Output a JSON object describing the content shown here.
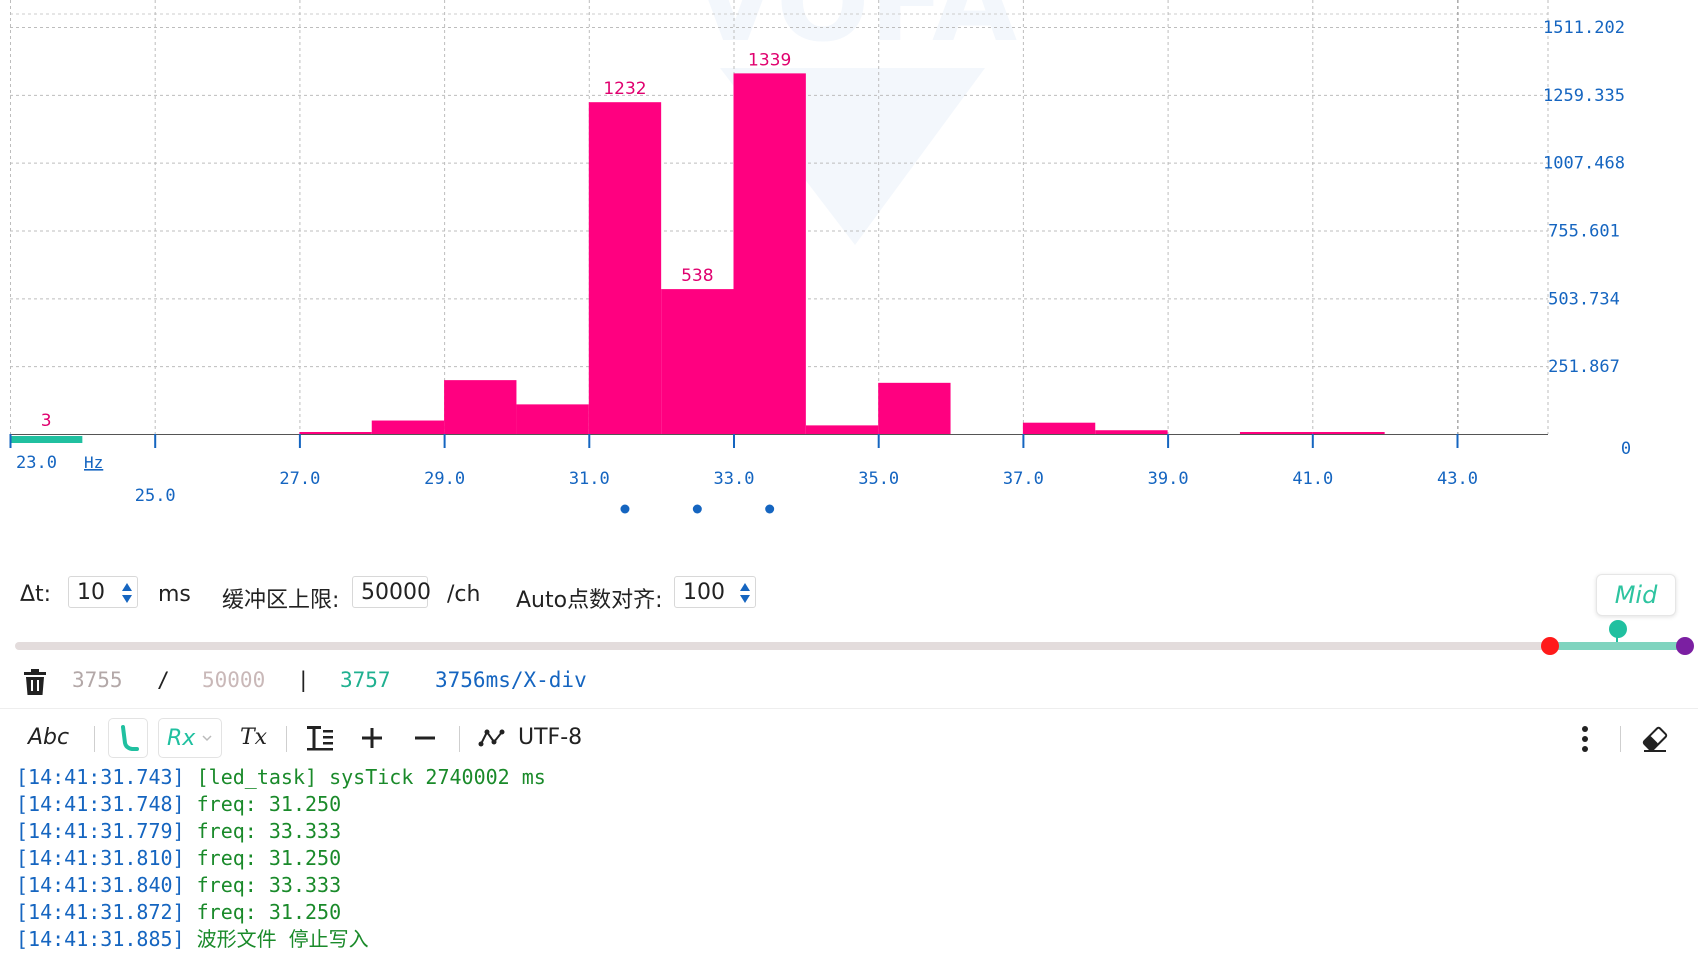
{
  "chart_data": {
    "type": "bar",
    "xlabel": "Hz",
    "xlim": [
      23.0,
      44.2
    ],
    "ylim": [
      0,
      1511.202
    ],
    "bin_width": 1.0,
    "bins": [
      {
        "x": 23.0,
        "value": 3,
        "label": "3",
        "color": "#20c0a0"
      },
      {
        "x": 27.0,
        "value": 4,
        "label": "",
        "color": "#ff0080"
      },
      {
        "x": 28.0,
        "value": 50,
        "label": "",
        "color": "#ff0080"
      },
      {
        "x": 29.0,
        "value": 200,
        "label": "",
        "color": "#ff0080"
      },
      {
        "x": 30.0,
        "value": 110,
        "label": "",
        "color": "#ff0080"
      },
      {
        "x": 31.0,
        "value": 1232,
        "label": "1232",
        "color": "#ff0080"
      },
      {
        "x": 32.0,
        "value": 538,
        "label": "538",
        "color": "#ff0080"
      },
      {
        "x": 33.0,
        "value": 1339,
        "label": "1339",
        "color": "#ff0080"
      },
      {
        "x": 34.0,
        "value": 32,
        "label": "",
        "color": "#ff0080"
      },
      {
        "x": 35.0,
        "value": 190,
        "label": "",
        "color": "#ff0080"
      },
      {
        "x": 37.0,
        "value": 42,
        "label": "",
        "color": "#ff0080"
      },
      {
        "x": 38.0,
        "value": 14,
        "label": "",
        "color": "#ff0080"
      },
      {
        "x": 40.0,
        "value": 3,
        "label": "",
        "color": "#ff0080"
      },
      {
        "x": 41.0,
        "value": 2,
        "label": "",
        "color": "#ff0080"
      }
    ],
    "x_ticks": [
      "23.0",
      "25.0",
      "27.0",
      "29.0",
      "31.0",
      "33.0",
      "35.0",
      "37.0",
      "39.0",
      "41.0",
      "43.0"
    ],
    "x_tick_values": [
      23.0,
      25.0,
      27.0,
      29.0,
      31.0,
      33.0,
      35.0,
      37.0,
      39.0,
      41.0,
      43.0
    ],
    "y_ticks": [
      "1511.202",
      "1259.335",
      "1007.468",
      "755.601",
      "503.734",
      "251.867",
      "0"
    ],
    "y_tick_values": [
      1511.202,
      1259.335,
      1007.468,
      755.601,
      503.734,
      251.867,
      0
    ],
    "grid": true,
    "watermark": "VOFA",
    "dots_at": [
      31.5,
      32.5,
      33.5
    ]
  },
  "controls": {
    "dt_label": "Δt:",
    "dt_value": "10",
    "dt_unit": "ms",
    "buffer_label": "缓冲区上限:",
    "buffer_value": "50000",
    "buffer_unit": "/ch",
    "auto_label": "Auto点数对齐:",
    "auto_value": "100",
    "mid_label": "Mid"
  },
  "info": {
    "count_current": "3755",
    "slash": "/",
    "count_max": "50000",
    "pipe": "|",
    "count_total": "3757",
    "xdiv": "3756ms/X-div"
  },
  "toolbar": {
    "abc_label": "Abc",
    "rx_label": "Rx",
    "tx_label": "Tx",
    "encoding_label": "UTF-8"
  },
  "log": [
    {
      "ts": "[14:41:31.743]",
      "msg": " [led_task] sysTick 2740002 ms"
    },
    {
      "ts": "[14:41:31.748]",
      "msg": " freq: 31.250"
    },
    {
      "ts": "[14:41:31.779]",
      "msg": " freq: 33.333"
    },
    {
      "ts": "[14:41:31.810]",
      "msg": " freq: 31.250"
    },
    {
      "ts": "[14:41:31.840]",
      "msg": " freq: 33.333"
    },
    {
      "ts": "[14:41:31.872]",
      "msg": " freq: 31.250"
    },
    {
      "ts": "[14:41:31.885]",
      "msg": " 波形文件 停止写入"
    }
  ],
  "colors": {
    "accent_teal": "#20c0a0",
    "bar_pink": "#ff0080",
    "axis_blue": "#1565c0",
    "slider_red": "#ff1a1a",
    "slider_purple": "#7b1fa2"
  }
}
